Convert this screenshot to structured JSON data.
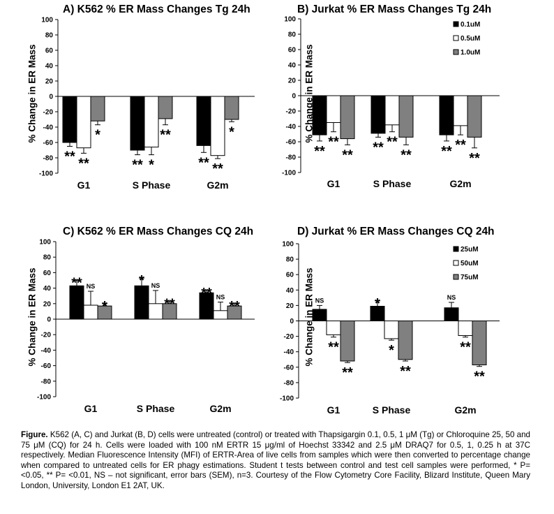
{
  "chart_data": [
    {
      "type": "bar",
      "title": "A) K562 % ER Mass Changes Tg  24h",
      "ylabel": "% Change in ER Mass",
      "xlabel": "",
      "categories": [
        "G1",
        "S Phase",
        "G2m"
      ],
      "ylim": [
        -100,
        100
      ],
      "yticks": [
        100,
        80,
        60,
        40,
        20,
        0,
        -20,
        -40,
        -60,
        -80,
        -100
      ],
      "grid": false,
      "series": [
        {
          "color": "#000000",
          "values": [
            -60,
            -70,
            -64
          ],
          "errors": [
            5,
            6,
            9
          ],
          "sig": [
            "**",
            "**",
            "**"
          ]
        },
        {
          "color": "#ffffff",
          "values": [
            -67,
            -66,
            -77
          ],
          "errors": [
            7,
            10,
            4
          ],
          "sig": [
            "**",
            "*",
            "**"
          ]
        },
        {
          "color": "#808080",
          "values": [
            -32,
            -29,
            -30
          ],
          "errors": [
            5,
            8,
            3
          ],
          "sig": [
            "*",
            "**",
            "*"
          ]
        }
      ]
    },
    {
      "type": "bar",
      "title": "B) Jurkat % ER Mass Changes Tg  24h",
      "ylabel": "% Change in ER Mass",
      "xlabel": "",
      "categories": [
        "G1",
        "S Phase",
        "G2m"
      ],
      "ylim": [
        -100,
        100
      ],
      "yticks": [
        100,
        80,
        60,
        40,
        20,
        0,
        -20,
        -40,
        -60,
        -80,
        -100
      ],
      "grid": false,
      "legend": {
        "position": "top-right",
        "entries": [
          "0.1uM",
          "0.5uM",
          "1.0uM"
        ]
      },
      "series": [
        {
          "name": "0.1uM",
          "color": "#000000",
          "values": [
            -51,
            -49,
            -51
          ],
          "errors": [
            8,
            5,
            8
          ],
          "sig": [
            "**",
            "**",
            "**"
          ]
        },
        {
          "name": "0.5uM",
          "color": "#ffffff",
          "values": [
            -35,
            -38,
            -39
          ],
          "errors": [
            12,
            9,
            12
          ],
          "sig": [
            "**",
            "**",
            "**"
          ]
        },
        {
          "name": "1.0uM",
          "color": "#808080",
          "values": [
            -56,
            -54,
            -54
          ],
          "errors": [
            8,
            10,
            14
          ],
          "sig": [
            "**",
            "**",
            "**"
          ]
        }
      ]
    },
    {
      "type": "bar",
      "title": "C) K562 % ER Mass Changes CQ  24h",
      "ylabel": "% Change in ER Mass",
      "xlabel": "",
      "categories": [
        "G1",
        "S Phase",
        "G2m"
      ],
      "ylim": [
        -100,
        100
      ],
      "yticks": [
        100,
        80,
        60,
        40,
        20,
        0,
        -20,
        -40,
        -60,
        -80,
        -100
      ],
      "grid": false,
      "series": [
        {
          "color": "#000000",
          "values": [
            43,
            43,
            34
          ],
          "errors": [
            7,
            10,
            3
          ],
          "sig": [
            "**",
            "*",
            "**"
          ]
        },
        {
          "color": "#ffffff",
          "values": [
            18,
            20,
            11
          ],
          "errors": [
            18,
            17,
            11
          ],
          "sig": [
            "NS",
            "NS",
            "NS"
          ]
        },
        {
          "color": "#808080",
          "values": [
            17,
            20,
            17
          ],
          "errors": [
            3,
            3,
            3
          ],
          "sig": [
            "*",
            "**",
            "**"
          ]
        }
      ]
    },
    {
      "type": "bar",
      "title": "D) Jurkat % ER Mass Changes CQ  24h",
      "ylabel": "% Change in ER Mass",
      "xlabel": "",
      "categories": [
        "G1",
        "S Phase",
        "G2m"
      ],
      "ylim": [
        -100,
        100
      ],
      "yticks": [
        100,
        80,
        60,
        40,
        20,
        0,
        -20,
        -40,
        -60,
        -80,
        -100
      ],
      "grid": false,
      "legend": {
        "position": "top-right",
        "entries": [
          "25uM",
          "50uM",
          "75uM"
        ]
      },
      "series": [
        {
          "name": "25uM",
          "color": "#000000",
          "values": [
            15,
            19,
            17
          ],
          "errors": [
            5,
            7,
            7
          ],
          "sig": [
            "NS",
            "*",
            "NS"
          ]
        },
        {
          "name": "50uM",
          "color": "#ffffff",
          "values": [
            -18,
            -23,
            -19
          ],
          "errors": [
            3,
            2,
            2
          ],
          "sig": [
            "**",
            "*",
            "**"
          ]
        },
        {
          "name": "75uM",
          "color": "#808080",
          "values": [
            -52,
            -50,
            -57
          ],
          "errors": [
            2,
            2,
            2
          ],
          "sig": [
            "**",
            "**",
            "**"
          ]
        }
      ]
    }
  ],
  "caption": {
    "lead": "Figure.",
    "text": " K562 (A, C) and Jurkat (B, D) cells were untreated (control) or treated with Thapsigargin  0.1, 0.5, 1 μM (Tg) or Chloroquine  25, 50 and 75 μM (CQ) for 24 h. Cells were loaded with 100 nM ERTR 15 μg/ml of Hoechst 33342 and 2.5 μM DRAQ7 for 0.5, 1, 0.25 h at 37C respectively. Median Fluorescence Intensity (MFI) of ERTR-Area of live cells from samples which were then converted to percentage change when compared to untreated cells for ER phagy estimations. Student t tests between control and test cell samples were performed,  * P= <0.05, ** P= <0.01, NS – not significant, error bars (SEM), n=3. Courtesy of the Flow Cytometry Core Facility, Blizard Institute, Queen Mary London, University, London E1 2AT, UK."
  }
}
